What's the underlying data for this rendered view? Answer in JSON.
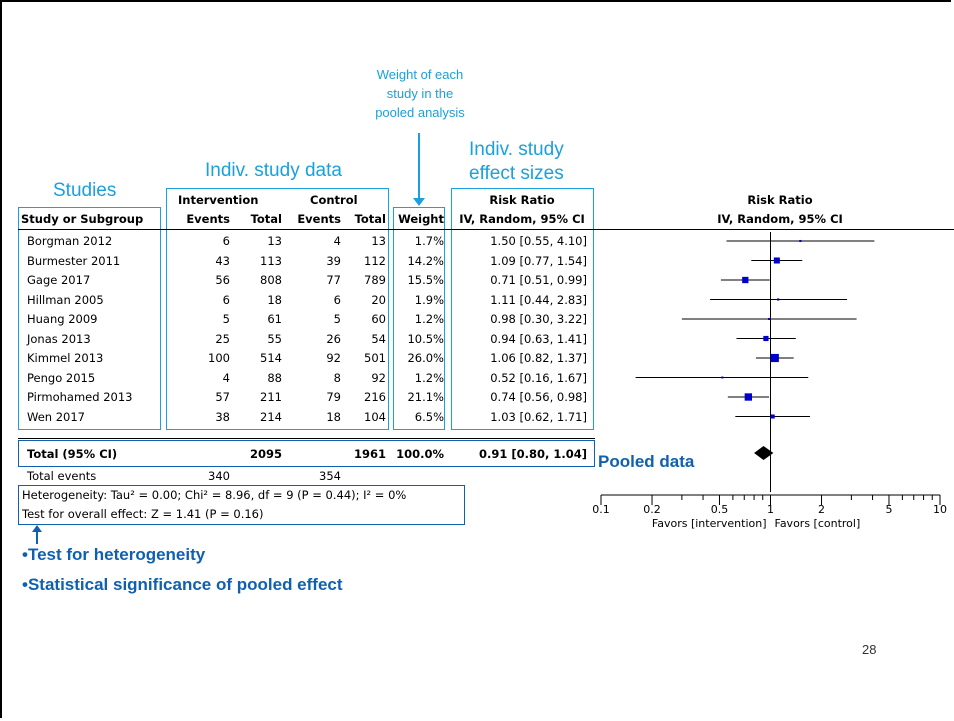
{
  "annotations": {
    "weight_note": [
      "Weight of each",
      "study in the",
      "pooled analysis"
    ],
    "indiv_data": "Indiv. study data",
    "indiv_effect": [
      "Indiv. study",
      "effect sizes"
    ],
    "studies": "Studies",
    "pooled": "Pooled data",
    "bullet_1": "•Test for heterogeneity",
    "bullet_2": "•Statistical significance of pooled effect"
  },
  "table": {
    "group_headers": {
      "intervention": "Intervention",
      "control": "Control",
      "rr": "Risk Ratio",
      "plot_rr": "Risk Ratio"
    },
    "columns": {
      "study": "Study or Subgroup",
      "int_events": "Events",
      "int_total": "Total",
      "ctl_events": "Events",
      "ctl_total": "Total",
      "weight": "Weight",
      "rr": "IV, Random, 95% CI",
      "plot": "IV, Random, 95% CI"
    },
    "total_row": {
      "label": "Total (95% CI)",
      "int_total": "2095",
      "ctl_total": "1961",
      "weight": "100.0%",
      "rr": "0.91 [0.80, 1.04]"
    },
    "events_row": {
      "label": "Total events",
      "int_events": "340",
      "ctl_events": "354"
    },
    "heterogeneity": "Heterogeneity: Tau² = 0.00; Chi² = 8.96, df = 9 (P = 0.44); I² = 0%",
    "overall": "Test for overall effect: Z = 1.41 (P = 0.16)"
  },
  "axis": {
    "ticks": [
      "0.1",
      "0.2",
      "0.5",
      "1",
      "2",
      "5",
      "10"
    ],
    "favors_left": "Favors [intervention]",
    "favors_right": "Favors [control]"
  },
  "page_number": "28",
  "chart_data": {
    "type": "forest",
    "scale": "log",
    "xlim": [
      0.1,
      10
    ],
    "null_line": 1,
    "studies": [
      {
        "name": "Borgman 2012",
        "int_events": 6,
        "int_total": 13,
        "ctl_events": 4,
        "ctl_total": 13,
        "weight": "1.7%",
        "rr": 1.5,
        "lo": 0.55,
        "hi": 4.1,
        "rr_text": "1.50 [0.55, 4.10]"
      },
      {
        "name": "Burmester 2011",
        "int_events": 43,
        "int_total": 113,
        "ctl_events": 39,
        "ctl_total": 112,
        "weight": "14.2%",
        "rr": 1.09,
        "lo": 0.77,
        "hi": 1.54,
        "rr_text": "1.09 [0.77, 1.54]"
      },
      {
        "name": "Gage 2017",
        "int_events": 56,
        "int_total": 808,
        "ctl_events": 77,
        "ctl_total": 789,
        "weight": "15.5%",
        "rr": 0.71,
        "lo": 0.51,
        "hi": 0.99,
        "rr_text": "0.71 [0.51, 0.99]"
      },
      {
        "name": "Hillman 2005",
        "int_events": 6,
        "int_total": 18,
        "ctl_events": 6,
        "ctl_total": 20,
        "weight": "1.9%",
        "rr": 1.11,
        "lo": 0.44,
        "hi": 2.83,
        "rr_text": "1.11 [0.44, 2.83]"
      },
      {
        "name": "Huang 2009",
        "int_events": 5,
        "int_total": 61,
        "ctl_events": 5,
        "ctl_total": 60,
        "weight": "1.2%",
        "rr": 0.98,
        "lo": 0.3,
        "hi": 3.22,
        "rr_text": "0.98 [0.30, 3.22]"
      },
      {
        "name": "Jonas 2013",
        "int_events": 25,
        "int_total": 55,
        "ctl_events": 26,
        "ctl_total": 54,
        "weight": "10.5%",
        "rr": 0.94,
        "lo": 0.63,
        "hi": 1.41,
        "rr_text": "0.94 [0.63, 1.41]"
      },
      {
        "name": "Kimmel 2013",
        "int_events": 100,
        "int_total": 514,
        "ctl_events": 92,
        "ctl_total": 501,
        "weight": "26.0%",
        "rr": 1.06,
        "lo": 0.82,
        "hi": 1.37,
        "rr_text": "1.06 [0.82, 1.37]"
      },
      {
        "name": "Pengo 2015",
        "int_events": 4,
        "int_total": 88,
        "ctl_events": 8,
        "ctl_total": 92,
        "weight": "1.2%",
        "rr": 0.52,
        "lo": 0.16,
        "hi": 1.67,
        "rr_text": "0.52 [0.16, 1.67]"
      },
      {
        "name": "Pirmohamed 2013",
        "int_events": 57,
        "int_total": 211,
        "ctl_events": 79,
        "ctl_total": 216,
        "weight": "21.1%",
        "rr": 0.74,
        "lo": 0.56,
        "hi": 0.98,
        "rr_text": "0.74 [0.56, 0.98]"
      },
      {
        "name": "Wen 2017",
        "int_events": 38,
        "int_total": 214,
        "ctl_events": 18,
        "ctl_total": 104,
        "weight": "6.5%",
        "rr": 1.03,
        "lo": 0.62,
        "hi": 1.71,
        "rr_text": "1.03 [0.62, 1.71]"
      }
    ],
    "pooled": {
      "rr": 0.91,
      "lo": 0.8,
      "hi": 1.04
    },
    "colors": {
      "square": "#0000cc",
      "diamond": "#000000",
      "annotation": "#1aa0dc",
      "emphasis": "#1060b0"
    }
  }
}
